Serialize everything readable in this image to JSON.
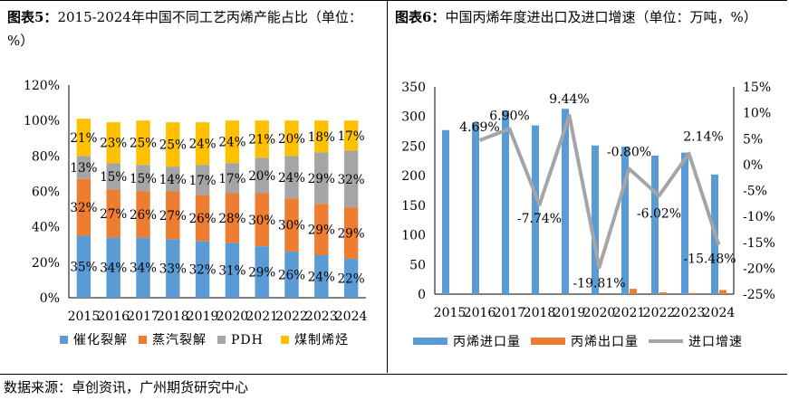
{
  "left": {
    "title_prefix": "图表5：",
    "title_text": "2015-2024年中国不同工艺丙烯产能占比（单位：%）",
    "chart_data": {
      "type": "bar",
      "stacked": true,
      "categories": [
        "2015",
        "2016",
        "2017",
        "2018",
        "2019",
        "2020",
        "2021",
        "2022",
        "2023",
        "2024"
      ],
      "series": [
        {
          "name": "催化裂解",
          "color": "#5B9BD5",
          "values": [
            35,
            34,
            34,
            33,
            32,
            31,
            29,
            26,
            24,
            22
          ]
        },
        {
          "name": "蒸汽裂解",
          "color": "#ED7D31",
          "values": [
            32,
            27,
            26,
            27,
            26,
            28,
            30,
            30,
            29,
            29
          ]
        },
        {
          "name": "PDH",
          "color": "#A5A5A5",
          "values": [
            13,
            15,
            15,
            14,
            17,
            17,
            20,
            24,
            29,
            32
          ]
        },
        {
          "name": "煤制烯烃",
          "color": "#FFC000",
          "values": [
            21,
            23,
            25,
            25,
            24,
            24,
            21,
            20,
            18,
            17
          ]
        }
      ],
      "ylim": [
        0,
        120
      ],
      "yticks": [
        "0%",
        "20%",
        "40%",
        "60%",
        "80%",
        "100%",
        "120%"
      ],
      "label_suffix": "%"
    }
  },
  "right": {
    "title_prefix": "图表6：",
    "title_text": "中国丙烯年度进出口及进口增速（单位：万吨，%）",
    "chart_data": {
      "type": "bar+line",
      "categories": [
        "2015",
        "2016",
        "2017",
        "2018",
        "2019",
        "2020",
        "2021",
        "2022",
        "2023",
        "2024"
      ],
      "series": [
        {
          "name": "丙烯进口量",
          "color": "#5B9BD5",
          "axis": "left",
          "values": [
            277,
            290,
            310,
            285,
            313,
            251,
            249,
            234,
            239,
            202
          ]
        },
        {
          "name": "丙烯出口量",
          "color": "#ED7D31",
          "axis": "left",
          "values": [
            0,
            0,
            0,
            0,
            0,
            0,
            9,
            3,
            2,
            7
          ]
        },
        {
          "name": "进口增速",
          "color": "#A5A5A5",
          "axis": "right",
          "type": "line",
          "values": [
            null,
            4.69,
            6.9,
            -7.74,
            9.44,
            -19.81,
            -0.8,
            -6.02,
            2.14,
            -15.48
          ]
        }
      ],
      "line_labels": [
        "",
        "4.69%",
        "6.90%",
        "-7.74%",
        "9.44%",
        "-19.81%",
        "-0.80%",
        "-6.02%",
        "2.14%",
        "-15.48%"
      ],
      "ylim_left": [
        0,
        350
      ],
      "yticks_left": [
        "0",
        "50",
        "100",
        "150",
        "200",
        "250",
        "300",
        "350"
      ],
      "ylim_right": [
        -25,
        15
      ],
      "yticks_right": [
        "-25%",
        "-20%",
        "-15%",
        "-10%",
        "-5%",
        "0%",
        "5%",
        "10%",
        "15%"
      ]
    }
  },
  "source": "数据来源：卓创资讯，广州期货研究中心"
}
